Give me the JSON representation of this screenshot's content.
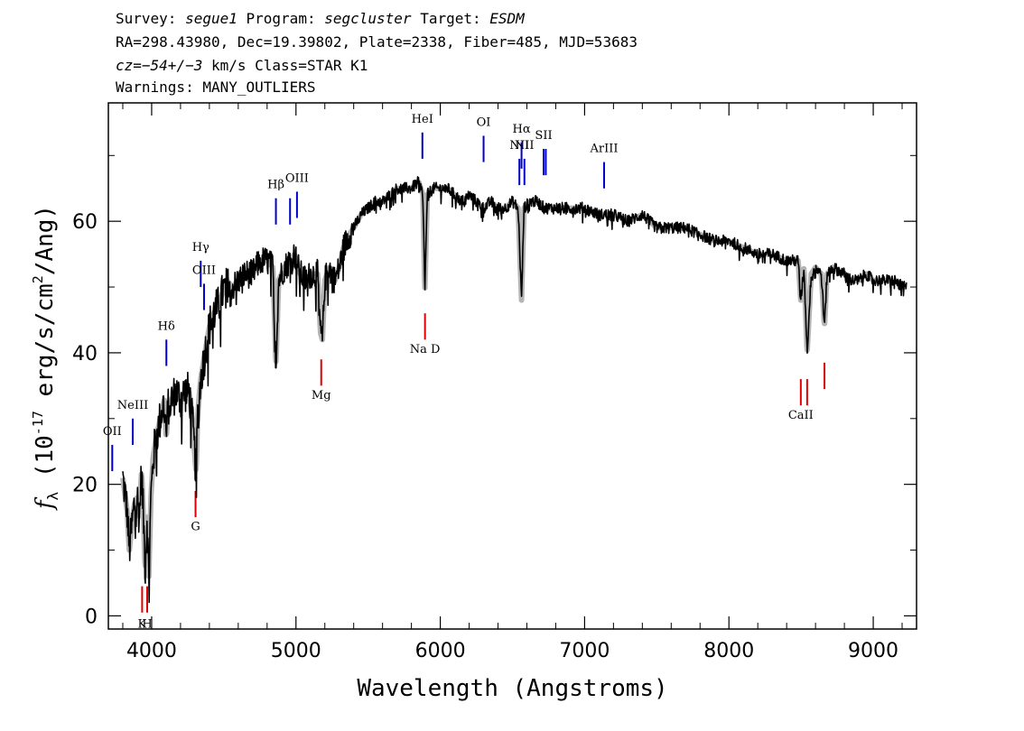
{
  "header": {
    "survey_label": "Survey:",
    "survey": "segue1",
    "program_label": "Program:",
    "program": "segcluster",
    "target_label": "Target:",
    "target": "ESDM",
    "line2": "RA=298.43980, Dec=19.39802, Plate=2338, Fiber=485, MJD=53683",
    "cz_label": "cz=",
    "cz_value": "−54+/−3",
    "cz_rest": " km/s Class=STAR K1",
    "warnings": "Warnings: MANY_OUTLIERS"
  },
  "chart_data": {
    "type": "line",
    "xlabel": "Wavelength (Angstroms)",
    "ylabel": "f_λ (10^-17 erg/s/cm^2/Ang)",
    "xlim": [
      3700,
      9300
    ],
    "ylim": [
      -2,
      78
    ],
    "x_ticks": [
      4000,
      5000,
      6000,
      7000,
      8000,
      9000
    ],
    "y_ticks": [
      0,
      20,
      40,
      60
    ],
    "colors": {
      "spectrum": "#000000",
      "error": "#b4b4b4",
      "emission": "#0000cc",
      "absorption": "#dd0000"
    },
    "spectrum_outline": [
      [
        3800,
        21
      ],
      [
        3830,
        16
      ],
      [
        3845,
        10
      ],
      [
        3860,
        13
      ],
      [
        3880,
        17
      ],
      [
        3900,
        18
      ],
      [
        3915,
        15
      ],
      [
        3930,
        22
      ],
      [
        3945,
        14
      ],
      [
        3955,
        7
      ],
      [
        3968,
        15
      ],
      [
        3980,
        6
      ],
      [
        3995,
        18
      ],
      [
        4010,
        24
      ],
      [
        4030,
        27
      ],
      [
        4050,
        29
      ],
      [
        4070,
        31
      ],
      [
        4090,
        33
      ],
      [
        4101,
        27
      ],
      [
        4115,
        32
      ],
      [
        4140,
        33
      ],
      [
        4170,
        34
      ],
      [
        4200,
        33
      ],
      [
        4230,
        34
      ],
      [
        4260,
        34
      ],
      [
        4285,
        29
      ],
      [
        4300,
        24
      ],
      [
        4308,
        22
      ],
      [
        4320,
        31
      ],
      [
        4340,
        36
      ],
      [
        4370,
        40
      ],
      [
        4400,
        44
      ],
      [
        4430,
        46
      ],
      [
        4460,
        47
      ],
      [
        4490,
        49
      ],
      [
        4520,
        51
      ],
      [
        4560,
        50
      ],
      [
        4600,
        51
      ],
      [
        4650,
        52
      ],
      [
        4700,
        52
      ],
      [
        4750,
        54
      ],
      [
        4800,
        54
      ],
      [
        4840,
        53
      ],
      [
        4861,
        38
      ],
      [
        4880,
        51
      ],
      [
        4920,
        53
      ],
      [
        4957,
        54
      ],
      [
        4990,
        55
      ],
      [
        5030,
        52
      ],
      [
        5070,
        51
      ],
      [
        5100,
        52
      ],
      [
        5150,
        52
      ],
      [
        5170,
        43
      ],
      [
        5183,
        42
      ],
      [
        5200,
        51
      ],
      [
        5230,
        53
      ],
      [
        5270,
        51
      ],
      [
        5300,
        53
      ],
      [
        5330,
        56
      ],
      [
        5370,
        58
      ],
      [
        5400,
        59
      ],
      [
        5450,
        61
      ],
      [
        5500,
        62
      ],
      [
        5550,
        63
      ],
      [
        5600,
        63
      ],
      [
        5650,
        64
      ],
      [
        5700,
        65
      ],
      [
        5750,
        65
      ],
      [
        5800,
        65
      ],
      [
        5850,
        66
      ],
      [
        5880,
        64
      ],
      [
        5893,
        49
      ],
      [
        5910,
        64
      ],
      [
        5950,
        65
      ],
      [
        6000,
        65
      ],
      [
        6050,
        65
      ],
      [
        6100,
        64
      ],
      [
        6150,
        63
      ],
      [
        6200,
        64
      ],
      [
        6250,
        63
      ],
      [
        6300,
        62
      ],
      [
        6350,
        63
      ],
      [
        6400,
        62
      ],
      [
        6450,
        62
      ],
      [
        6500,
        63
      ],
      [
        6540,
        62
      ],
      [
        6563,
        48
      ],
      [
        6580,
        62
      ],
      [
        6620,
        63
      ],
      [
        6670,
        63
      ],
      [
        6720,
        62
      ],
      [
        6800,
        62
      ],
      [
        6900,
        62
      ],
      [
        7000,
        62
      ],
      [
        7100,
        61
      ],
      [
        7200,
        61
      ],
      [
        7300,
        60
      ],
      [
        7400,
        61
      ],
      [
        7500,
        59
      ],
      [
        7600,
        59
      ],
      [
        7700,
        59
      ],
      [
        7800,
        58
      ],
      [
        7900,
        57
      ],
      [
        8000,
        57
      ],
      [
        8100,
        56
      ],
      [
        8200,
        55
      ],
      [
        8300,
        55
      ],
      [
        8400,
        54
      ],
      [
        8480,
        54
      ],
      [
        8498,
        48
      ],
      [
        8520,
        53
      ],
      [
        8542,
        40
      ],
      [
        8570,
        52
      ],
      [
        8600,
        53
      ],
      [
        8640,
        52
      ],
      [
        8662,
        44
      ],
      [
        8680,
        52
      ],
      [
        8720,
        53
      ],
      [
        8800,
        52
      ],
      [
        8850,
        51
      ],
      [
        8900,
        51
      ],
      [
        8950,
        52
      ],
      [
        9000,
        51
      ],
      [
        9050,
        51
      ],
      [
        9100,
        51
      ],
      [
        9150,
        51
      ],
      [
        9200,
        50
      ],
      [
        9230,
        50
      ]
    ],
    "emission_lines": [
      {
        "label": "OII",
        "x": 3727,
        "y_low": 22,
        "y_high": 26,
        "label_y": 27.5
      },
      {
        "label": "NeIII",
        "x": 3869,
        "y_low": 26,
        "y_high": 30,
        "label_y": 31.5
      },
      {
        "label": "Hδ",
        "x": 4102,
        "y_low": 38,
        "y_high": 42,
        "label_y": 43.5
      },
      {
        "label": "Hγ",
        "x": 4340,
        "y_low": 50,
        "y_high": 54,
        "label_y": 55.5
      },
      {
        "label": "OIII",
        "x": 4363,
        "y_low": 46.5,
        "y_high": 50.5,
        "label_y": 52
      },
      {
        "label": "Hβ",
        "x": 4861,
        "y_low": 59.5,
        "y_high": 63.5,
        "label_y": 65
      },
      {
        "label": "OIII",
        "x": 4959,
        "y_low": 59.5,
        "y_high": 63.5,
        "label_y": 0
      },
      {
        "label": "OIII",
        "x": 5007,
        "y_low": 60.5,
        "y_high": 64.5,
        "label_y": 66
      },
      {
        "label": "HeI",
        "x": 5876,
        "y_low": 69.5,
        "y_high": 73.5,
        "label_y": 75
      },
      {
        "label": "OI",
        "x": 6300,
        "y_low": 69,
        "y_high": 73,
        "label_y": 74.5
      },
      {
        "label": "NII",
        "x": 6548,
        "y_low": 65.5,
        "y_high": 69.5,
        "label_y": 71
      },
      {
        "label": "Hα",
        "x": 6563,
        "y_low": 68,
        "y_high": 72,
        "label_y": 73.5
      },
      {
        "label": "NII",
        "x": 6583,
        "y_low": 65.5,
        "y_high": 69.5,
        "label_y": 71
      },
      {
        "label": "SII",
        "x": 6716,
        "y_low": 67,
        "y_high": 71,
        "label_y": 72.5
      },
      {
        "label": "SII",
        "x": 6731,
        "y_low": 67,
        "y_high": 71,
        "label_y": 0
      },
      {
        "label": "ArIII",
        "x": 7135,
        "y_low": 65,
        "y_high": 69,
        "label_y": 70.5
      }
    ],
    "absorption_lines": [
      {
        "label": "K",
        "x": 3934,
        "y_low": 0.5,
        "y_high": 4.5,
        "label_y": -1.8
      },
      {
        "label": "H",
        "x": 3969,
        "y_low": 0.5,
        "y_high": 4.5,
        "label_y": -1.8
      },
      {
        "label": "G",
        "x": 4304,
        "y_low": 15,
        "y_high": 19,
        "label_y": 13
      },
      {
        "label": "Mg",
        "x": 5175,
        "y_low": 35,
        "y_high": 39,
        "label_y": 33
      },
      {
        "label": "Na D",
        "x": 5894,
        "y_low": 42,
        "y_high": 46,
        "label_y": 40
      },
      {
        "label": "CaII",
        "x": 8498,
        "y_low": 32,
        "y_high": 36,
        "label_y": 30
      },
      {
        "label": "",
        "x": 8542,
        "y_low": 32,
        "y_high": 36,
        "label_y": 0
      },
      {
        "label": "",
        "x": 8662,
        "y_low": 34.5,
        "y_high": 38.5,
        "label_y": 0
      }
    ]
  }
}
